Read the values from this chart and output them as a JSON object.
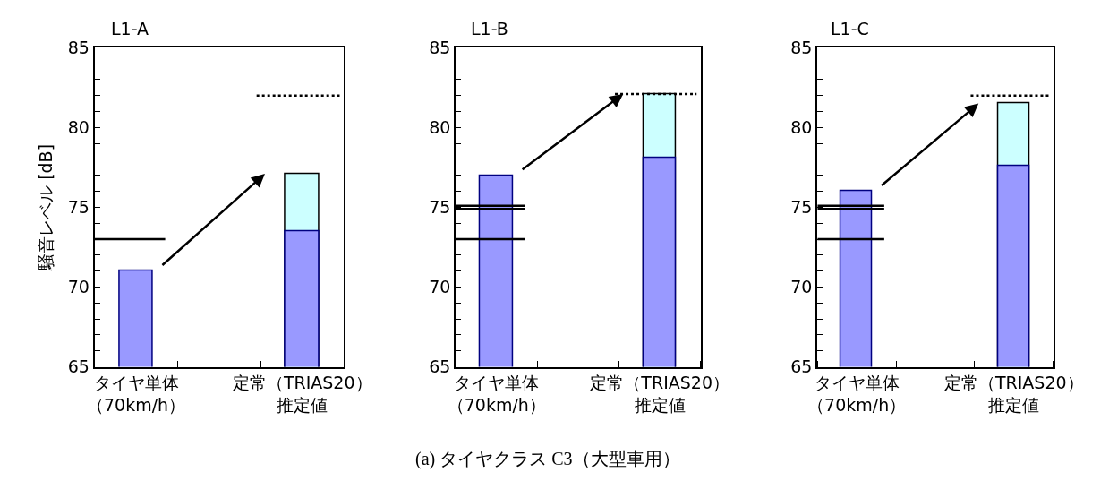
{
  "chart_data": [
    {
      "type": "bar",
      "title": "L1-A",
      "ylabel": "騒音レベル [dB]",
      "categories": [
        "タイヤ単体（70km/h）",
        null,
        "定常（TRIAS20）推定値"
      ],
      "series": [
        {
          "color": "#ccffff",
          "values": [
            null,
            null,
            77.1
          ]
        },
        {
          "color": "#9999ff",
          "values": [
            71.0,
            null,
            73.5
          ]
        }
      ],
      "ylim": [
        65,
        85
      ],
      "yticks": [
        65,
        {
          "value": 66,
          "label": null
        },
        {
          "value": 67,
          "label": null
        },
        {
          "value": 68,
          "label": null
        },
        {
          "value": 69,
          "label": null
        },
        70,
        {
          "value": 71,
          "label": null
        },
        {
          "value": 72,
          "label": null
        },
        {
          "value": 73,
          "label": null
        },
        {
          "value": 74,
          "label": null
        },
        75,
        {
          "value": 76,
          "label": null
        },
        {
          "value": 77,
          "label": null
        },
        {
          "value": 78,
          "label": null
        },
        {
          "value": 79,
          "label": null
        },
        80,
        {
          "value": 81,
          "label": null
        },
        {
          "value": 82,
          "label": null
        },
        {
          "value": 83,
          "label": null
        },
        {
          "value": 84,
          "label": null
        },
        85
      ],
      "ref_lines": [
        {
          "axis": "y",
          "value": 73.0,
          "color": "#000000",
          "line_style": "solid"
        },
        {
          "axis": "y",
          "value": 82.0,
          "color": "#000000",
          "line_style": "dotted"
        }
      ]
    },
    {
      "type": "bar",
      "title": "L1-B",
      "categories": [
        "タイヤ単体（70km/h）",
        null,
        "定常（TRIAS20）推定値"
      ],
      "series": [
        {
          "color": "#ccffff",
          "values": [
            null,
            null,
            82.1
          ]
        },
        {
          "color": "#9999ff",
          "values": [
            77.0,
            null,
            78.1
          ]
        }
      ],
      "ylim": [
        65,
        85
      ],
      "yticks": [
        65,
        {
          "value": 66,
          "label": null
        },
        {
          "value": 67,
          "label": null
        },
        {
          "value": 68,
          "label": null
        },
        {
          "value": 69,
          "label": null
        },
        70,
        {
          "value": 71,
          "label": null
        },
        {
          "value": 72,
          "label": null
        },
        {
          "value": 73,
          "label": null
        },
        {
          "value": 74,
          "label": null
        },
        75,
        {
          "value": 76,
          "label": null
        },
        {
          "value": 77,
          "label": null
        },
        {
          "value": 78,
          "label": null
        },
        {
          "value": 79,
          "label": null
        },
        80,
        {
          "value": 81,
          "label": null
        },
        {
          "value": 82,
          "label": null
        },
        {
          "value": 83,
          "label": null
        },
        {
          "value": 84,
          "label": null
        },
        85
      ],
      "ref_lines": [
        {
          "axis": "y",
          "value": 73.0,
          "color": "#000000",
          "line_style": "solid"
        },
        {
          "axis": "y",
          "value": 74.9,
          "color": "#000000",
          "line_style": "solid"
        },
        {
          "axis": "y",
          "value": 75.1,
          "color": "#000000",
          "line_style": "solid"
        },
        {
          "axis": "y",
          "value": 82.1,
          "color": "#000000",
          "line_style": "dotted"
        }
      ],
      "annotations": [
        "(a) タイヤクラス C3（大型車用）"
      ]
    },
    {
      "type": "bar",
      "title": "L1-C",
      "categories": [
        "タイヤ単体（70km/h）",
        null,
        "定常（TRIAS20）推定値"
      ],
      "series": [
        {
          "color": "#ccffff",
          "values": [
            null,
            null,
            81.5
          ]
        },
        {
          "color": "#9999ff",
          "values": [
            76.0,
            null,
            77.6
          ]
        }
      ],
      "ylim": [
        65,
        85
      ],
      "yticks": [
        65,
        {
          "value": 66,
          "label": null
        },
        {
          "value": 67,
          "label": null
        },
        {
          "value": 68,
          "label": null
        },
        {
          "value": 69,
          "label": null
        },
        70,
        {
          "value": 71,
          "label": null
        },
        {
          "value": 72,
          "label": null
        },
        {
          "value": 73,
          "label": null
        },
        {
          "value": 74,
          "label": null
        },
        75,
        {
          "value": 76,
          "label": null
        },
        {
          "value": 77,
          "label": null
        },
        {
          "value": 78,
          "label": null
        },
        {
          "value": 79,
          "label": null
        },
        80,
        {
          "value": 81,
          "label": null
        },
        {
          "value": 82,
          "label": null
        },
        {
          "value": 83,
          "label": null
        },
        {
          "value": 84,
          "label": null
        },
        85
      ],
      "ref_lines": [
        {
          "axis": "y",
          "value": 73.0,
          "color": "#000000",
          "line_style": "solid"
        },
        {
          "axis": "y",
          "value": 74.9,
          "color": "#000000",
          "line_style": "solid"
        },
        {
          "axis": "y",
          "value": 75.1,
          "color": "#000000",
          "line_style": "solid"
        },
        {
          "axis": "y",
          "value": 82.0,
          "color": "#000000",
          "line_style": "dotted"
        }
      ]
    }
  ]
}
